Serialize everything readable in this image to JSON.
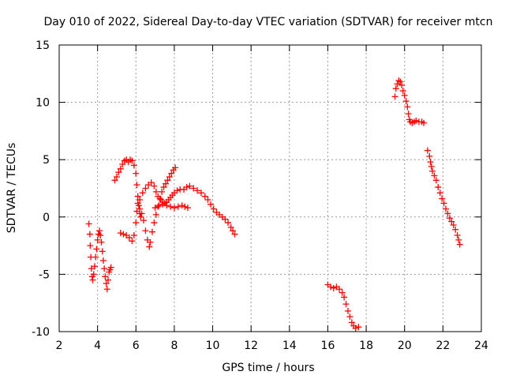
{
  "chart_data": {
    "type": "scatter",
    "title": "Day 010 of 2022, Sidereal Day-to-day VTEC variation (SDTVAR) for receiver mtcn",
    "xlabel": "GPS time / hours",
    "ylabel": "SDTVAR / TECUs",
    "xlim": [
      2,
      24
    ],
    "ylim": [
      -10,
      15
    ],
    "xticks": [
      2,
      4,
      6,
      8,
      10,
      12,
      14,
      16,
      18,
      20,
      22,
      24
    ],
    "yticks": [
      -10,
      -5,
      0,
      5,
      10,
      15
    ],
    "grid": true,
    "marker": "+",
    "color": "#ff0000",
    "series": [
      {
        "name": "seg1",
        "points": [
          [
            3.55,
            -0.6
          ],
          [
            3.6,
            -1.5
          ],
          [
            3.62,
            -2.5
          ],
          [
            3.65,
            -3.5
          ],
          [
            3.68,
            -4.5
          ],
          [
            3.72,
            -5.2
          ],
          [
            3.75,
            -5.5
          ],
          [
            3.8,
            -5.0
          ],
          [
            3.85,
            -4.3
          ],
          [
            3.9,
            -3.5
          ],
          [
            3.95,
            -2.8
          ],
          [
            4.0,
            -2.0
          ],
          [
            4.05,
            -1.5
          ],
          [
            4.1,
            -1.2
          ],
          [
            4.15,
            -1.6
          ],
          [
            4.2,
            -2.2
          ],
          [
            4.25,
            -3.0
          ],
          [
            4.3,
            -3.8
          ],
          [
            4.35,
            -4.5
          ],
          [
            4.4,
            -5.2
          ],
          [
            4.45,
            -5.8
          ],
          [
            4.5,
            -6.3
          ],
          [
            4.55,
            -5.5
          ],
          [
            4.6,
            -4.8
          ],
          [
            4.65,
            -4.6
          ],
          [
            4.7,
            -4.4
          ]
        ]
      },
      {
        "name": "seg2",
        "points": [
          [
            4.9,
            3.2
          ],
          [
            5.0,
            3.5
          ],
          [
            5.1,
            3.9
          ],
          [
            5.2,
            4.2
          ],
          [
            5.3,
            4.6
          ],
          [
            5.4,
            4.9
          ],
          [
            5.5,
            5.0
          ],
          [
            5.6,
            4.8
          ],
          [
            5.7,
            5.0
          ],
          [
            5.8,
            4.9
          ],
          [
            5.9,
            4.5
          ],
          [
            6.0,
            3.8
          ],
          [
            6.05,
            2.8
          ],
          [
            6.1,
            1.8
          ],
          [
            6.15,
            1.0
          ],
          [
            6.2,
            0.3
          ],
          [
            6.25,
            0.0
          ]
        ]
      },
      {
        "name": "seg3",
        "points": [
          [
            5.2,
            -1.4
          ],
          [
            5.35,
            -1.5
          ],
          [
            5.5,
            -1.6
          ],
          [
            5.65,
            -1.8
          ],
          [
            5.8,
            -2.1
          ],
          [
            5.9,
            -1.6
          ],
          [
            6.0,
            -0.5
          ],
          [
            6.05,
            0.5
          ],
          [
            6.1,
            1.2
          ],
          [
            6.2,
            0.7
          ],
          [
            6.3,
            0.3
          ],
          [
            6.4,
            -0.3
          ],
          [
            6.5,
            -1.2
          ],
          [
            6.6,
            -2.0
          ],
          [
            6.7,
            -2.6
          ],
          [
            6.75,
            -2.2
          ],
          [
            6.85,
            -1.3
          ],
          [
            6.95,
            -0.5
          ],
          [
            7.05,
            0.2
          ],
          [
            7.15,
            0.9
          ],
          [
            7.25,
            1.6
          ],
          [
            7.35,
            2.2
          ],
          [
            7.45,
            2.6
          ],
          [
            7.55,
            2.9
          ],
          [
            7.65,
            3.2
          ],
          [
            7.75,
            3.5
          ],
          [
            7.85,
            3.8
          ],
          [
            7.95,
            4.1
          ],
          [
            8.05,
            4.3
          ]
        ]
      },
      {
        "name": "seg4",
        "points": [
          [
            6.2,
            1.5
          ],
          [
            6.35,
            2.1
          ],
          [
            6.5,
            2.5
          ],
          [
            6.65,
            2.8
          ],
          [
            6.8,
            3.0
          ],
          [
            6.95,
            2.7
          ],
          [
            7.05,
            2.2
          ],
          [
            7.15,
            1.8
          ],
          [
            7.3,
            1.5
          ],
          [
            7.4,
            1.3
          ],
          [
            7.5,
            1.2
          ],
          [
            7.6,
            1.3
          ],
          [
            7.7,
            1.5
          ],
          [
            7.8,
            1.7
          ],
          [
            7.9,
            1.9
          ],
          [
            8.0,
            2.1
          ],
          [
            8.15,
            2.3
          ],
          [
            8.3,
            2.4
          ],
          [
            8.5,
            2.4
          ],
          [
            8.65,
            2.6
          ],
          [
            8.8,
            2.7
          ],
          [
            9.0,
            2.5
          ],
          [
            9.2,
            2.3
          ],
          [
            9.4,
            2.1
          ],
          [
            9.6,
            1.8
          ],
          [
            9.75,
            1.5
          ],
          [
            9.9,
            1.1
          ],
          [
            10.05,
            0.7
          ],
          [
            10.2,
            0.4
          ],
          [
            10.35,
            0.2
          ],
          [
            10.5,
            0.0
          ],
          [
            10.65,
            -0.2
          ],
          [
            10.8,
            -0.5
          ],
          [
            10.95,
            -0.9
          ],
          [
            11.05,
            -1.2
          ],
          [
            11.15,
            -1.5
          ]
        ]
      },
      {
        "name": "seg5",
        "points": [
          [
            7.0,
            0.8
          ],
          [
            7.2,
            1.0
          ],
          [
            7.4,
            1.1
          ],
          [
            7.6,
            1.0
          ],
          [
            7.8,
            0.9
          ],
          [
            8.0,
            0.8
          ],
          [
            8.2,
            0.9
          ],
          [
            8.4,
            1.0
          ],
          [
            8.55,
            0.9
          ],
          [
            8.7,
            0.8
          ]
        ]
      },
      {
        "name": "seg6",
        "points": [
          [
            16.0,
            -5.9
          ],
          [
            16.15,
            -6.1
          ],
          [
            16.3,
            -6.2
          ],
          [
            16.45,
            -6.1
          ],
          [
            16.6,
            -6.3
          ],
          [
            16.75,
            -6.6
          ],
          [
            16.85,
            -7.0
          ],
          [
            16.95,
            -7.6
          ],
          [
            17.05,
            -8.2
          ],
          [
            17.15,
            -8.7
          ],
          [
            17.25,
            -9.2
          ],
          [
            17.35,
            -9.5
          ],
          [
            17.45,
            -9.7
          ],
          [
            17.6,
            -9.6
          ]
        ]
      },
      {
        "name": "seg7",
        "points": [
          [
            19.5,
            10.5
          ],
          [
            19.55,
            11.2
          ],
          [
            19.62,
            11.6
          ],
          [
            19.7,
            11.9
          ],
          [
            19.78,
            11.8
          ],
          [
            19.85,
            11.5
          ],
          [
            19.92,
            11.0
          ],
          [
            20.0,
            10.6
          ],
          [
            20.08,
            10.1
          ],
          [
            20.15,
            9.6
          ],
          [
            20.2,
            9.0
          ],
          [
            20.25,
            8.5
          ],
          [
            20.3,
            8.3
          ],
          [
            20.4,
            8.2
          ],
          [
            20.5,
            8.3
          ],
          [
            20.6,
            8.4
          ],
          [
            20.75,
            8.3
          ],
          [
            20.9,
            8.3
          ],
          [
            21.0,
            8.2
          ]
        ]
      },
      {
        "name": "seg8",
        "points": [
          [
            21.2,
            5.8
          ],
          [
            21.3,
            5.3
          ],
          [
            21.35,
            4.8
          ],
          [
            21.4,
            4.4
          ],
          [
            21.45,
            4.0
          ],
          [
            21.55,
            3.6
          ],
          [
            21.65,
            3.2
          ],
          [
            21.75,
            2.6
          ],
          [
            21.85,
            2.1
          ],
          [
            21.95,
            1.6
          ],
          [
            22.05,
            1.2
          ],
          [
            22.15,
            0.7
          ],
          [
            22.25,
            0.3
          ],
          [
            22.35,
            -0.1
          ],
          [
            22.45,
            -0.4
          ],
          [
            22.55,
            -0.7
          ],
          [
            22.65,
            -1.1
          ],
          [
            22.75,
            -1.6
          ],
          [
            22.82,
            -2.0
          ],
          [
            22.88,
            -2.4
          ]
        ]
      }
    ]
  }
}
